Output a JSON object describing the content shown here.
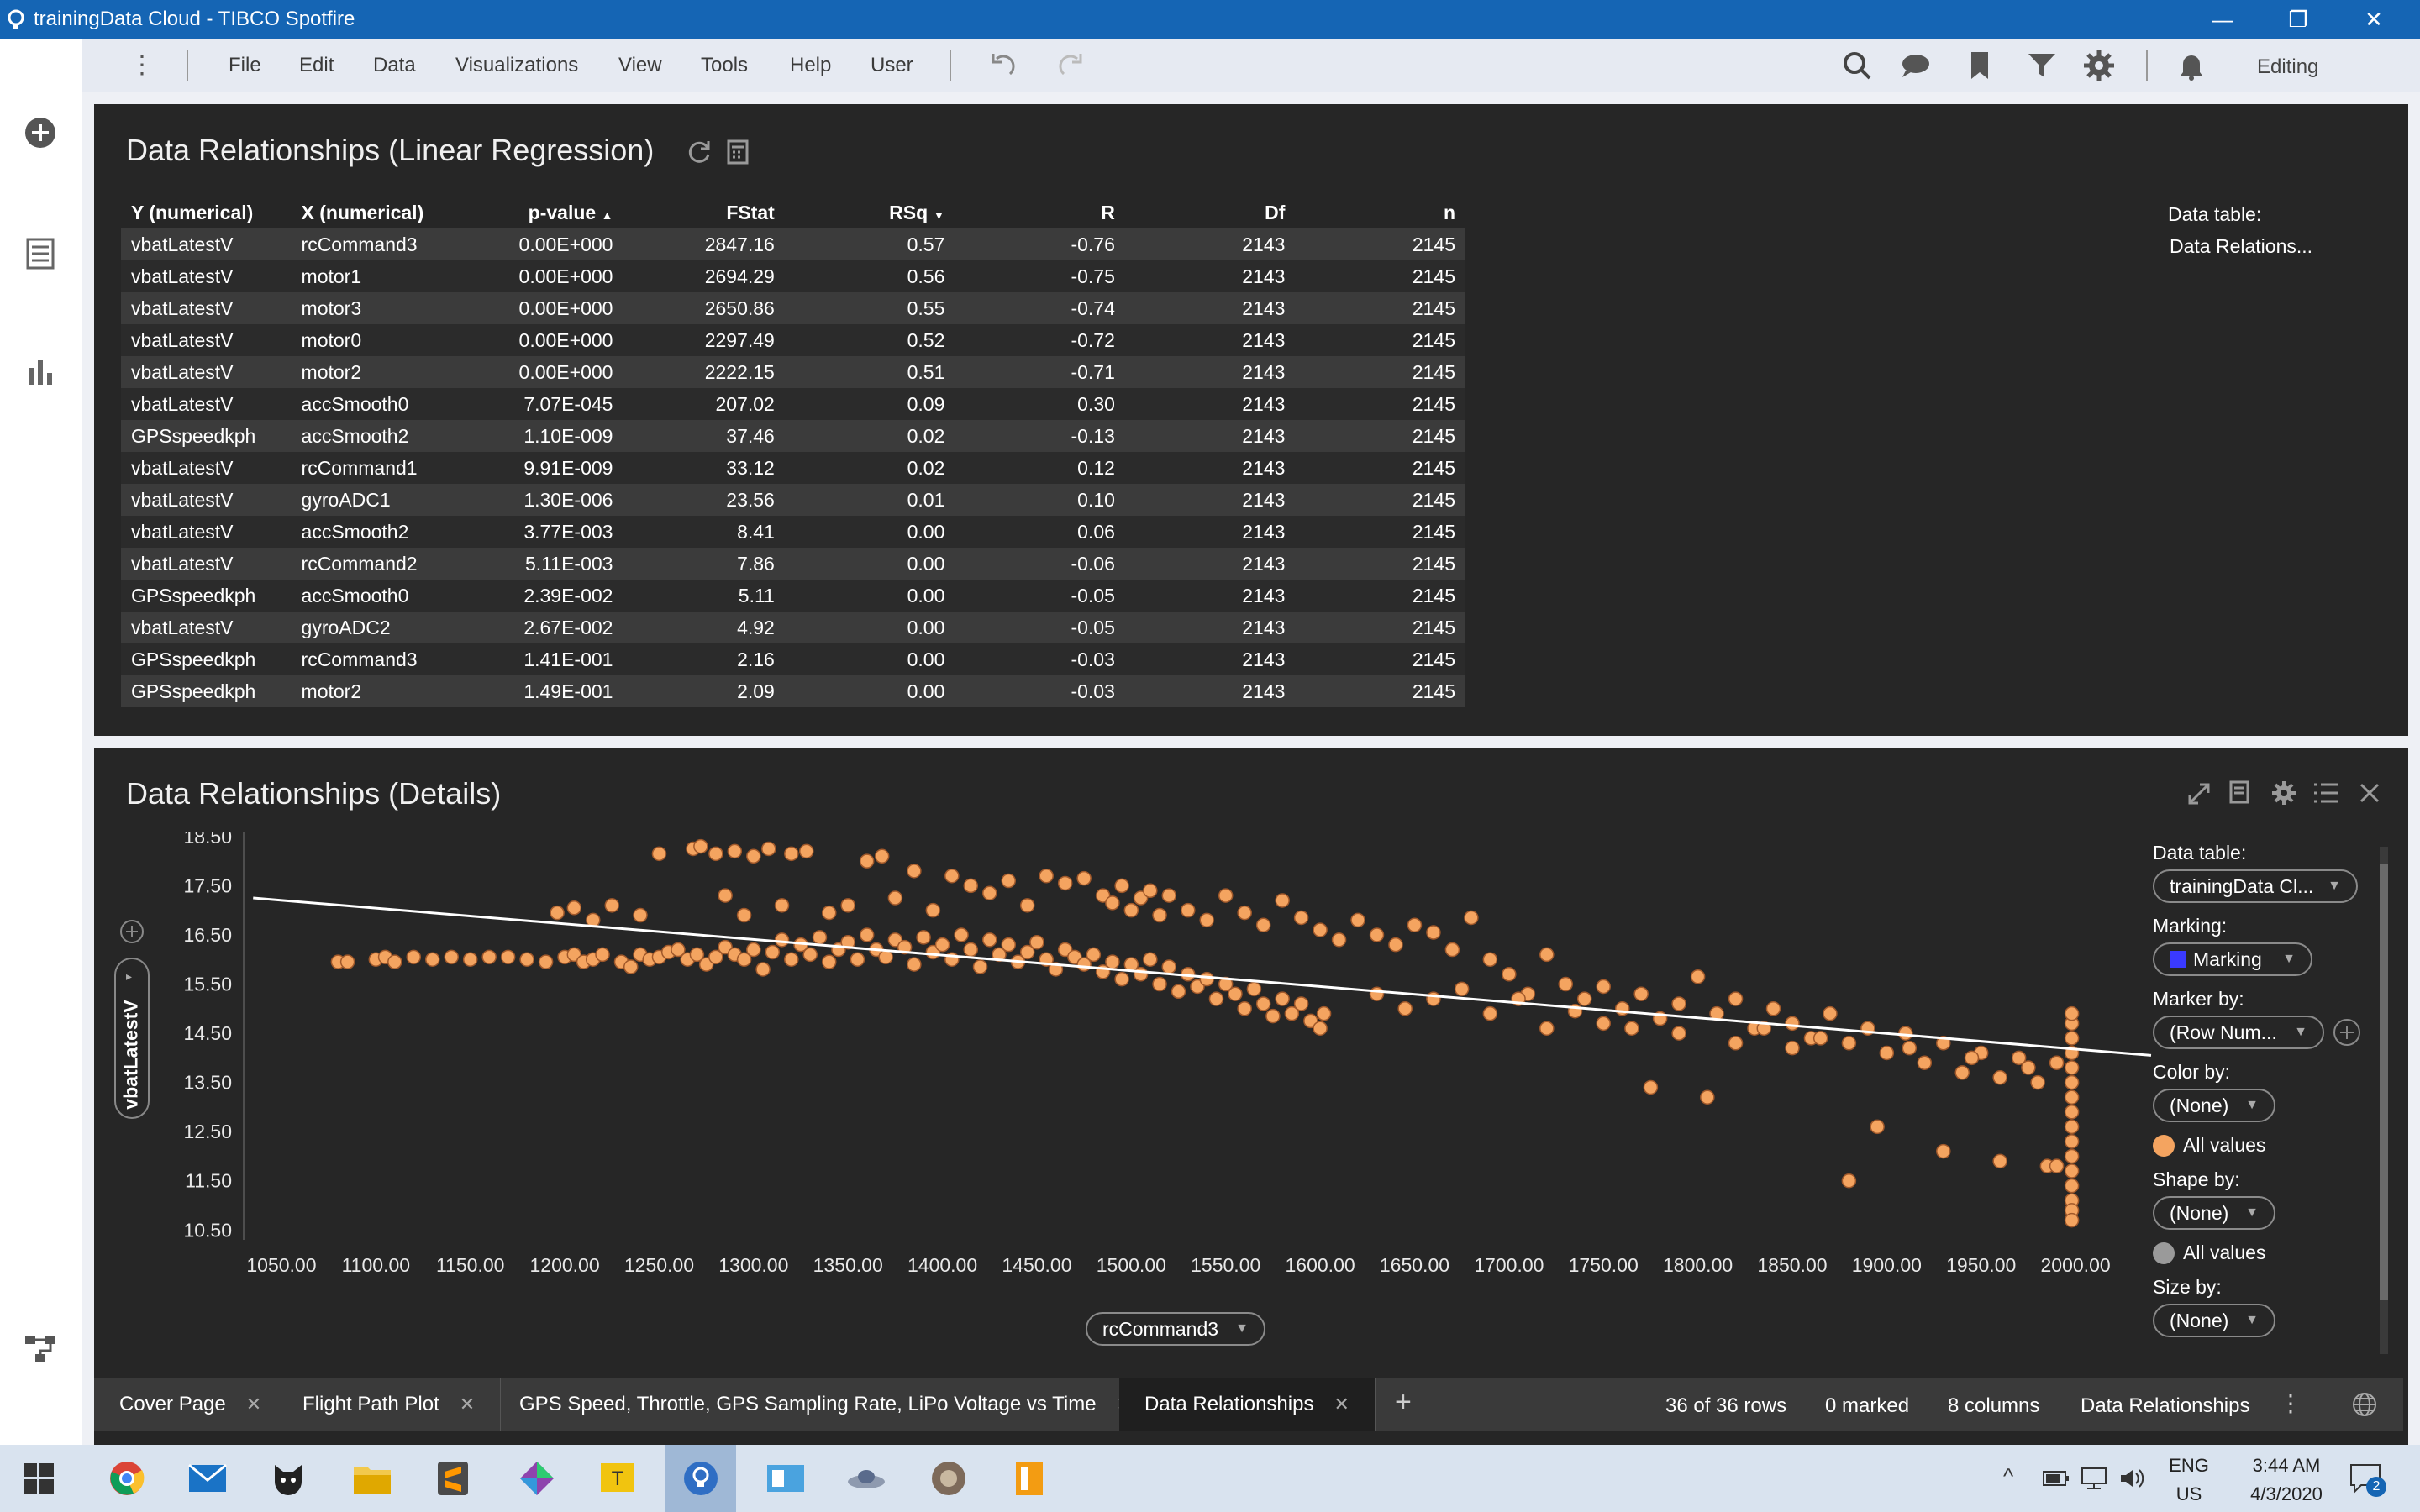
{
  "window": {
    "title": "trainingData Cloud - TIBCO Spotfire",
    "minimize": "—",
    "restore": "❐",
    "close": "✕"
  },
  "menu": {
    "items": [
      "File",
      "Edit",
      "Data",
      "Visualizations",
      "View",
      "Tools",
      "Help",
      "User"
    ],
    "mode": "Editing"
  },
  "regression_panel": {
    "title": "Data Relationships (Linear Regression)",
    "columns": [
      "Y (numerical)",
      "X (numerical)",
      "p-value",
      "FStat",
      "RSq",
      "R",
      "Df",
      "n"
    ],
    "rows": [
      [
        "vbatLatestV",
        "rcCommand3",
        "0.00E+000",
        "2847.16",
        "0.57",
        "-0.76",
        "2143",
        "2145"
      ],
      [
        "vbatLatestV",
        "motor1",
        "0.00E+000",
        "2694.29",
        "0.56",
        "-0.75",
        "2143",
        "2145"
      ],
      [
        "vbatLatestV",
        "motor3",
        "0.00E+000",
        "2650.86",
        "0.55",
        "-0.74",
        "2143",
        "2145"
      ],
      [
        "vbatLatestV",
        "motor0",
        "0.00E+000",
        "2297.49",
        "0.52",
        "-0.72",
        "2143",
        "2145"
      ],
      [
        "vbatLatestV",
        "motor2",
        "0.00E+000",
        "2222.15",
        "0.51",
        "-0.71",
        "2143",
        "2145"
      ],
      [
        "vbatLatestV",
        "accSmooth0",
        "7.07E-045",
        "207.02",
        "0.09",
        "0.30",
        "2143",
        "2145"
      ],
      [
        "GPSspeedkph",
        "accSmooth2",
        "1.10E-009",
        "37.46",
        "0.02",
        "-0.13",
        "2143",
        "2145"
      ],
      [
        "vbatLatestV",
        "rcCommand1",
        "9.91E-009",
        "33.12",
        "0.02",
        "0.12",
        "2143",
        "2145"
      ],
      [
        "vbatLatestV",
        "gyroADC1",
        "1.30E-006",
        "23.56",
        "0.01",
        "0.10",
        "2143",
        "2145"
      ],
      [
        "vbatLatestV",
        "accSmooth2",
        "3.77E-003",
        "8.41",
        "0.00",
        "0.06",
        "2143",
        "2145"
      ],
      [
        "vbatLatestV",
        "rcCommand2",
        "5.11E-003",
        "7.86",
        "0.00",
        "-0.06",
        "2143",
        "2145"
      ],
      [
        "GPSspeedkph",
        "accSmooth0",
        "2.39E-002",
        "5.11",
        "0.00",
        "-0.05",
        "2143",
        "2145"
      ],
      [
        "vbatLatestV",
        "gyroADC2",
        "2.67E-002",
        "4.92",
        "0.00",
        "-0.05",
        "2143",
        "2145"
      ],
      [
        "GPSspeedkph",
        "rcCommand3",
        "1.41E-001",
        "2.16",
        "0.00",
        "-0.03",
        "2143",
        "2145"
      ],
      [
        "GPSspeedkph",
        "motor2",
        "1.49E-001",
        "2.09",
        "0.00",
        "-0.03",
        "2143",
        "2145"
      ]
    ],
    "side": {
      "data_table_label": "Data table:",
      "data_table_value": "Data Relations..."
    }
  },
  "details_panel": {
    "title": "Data Relationships (Details)",
    "y_axis_selector": "vbatLatestV",
    "x_axis_selector": "rcCommand3",
    "legend": {
      "data_table_label": "Data table:",
      "data_table_value": "trainingData Cl...",
      "marking_label": "Marking:",
      "marking_value": "Marking",
      "marker_by_label": "Marker by:",
      "marker_by_value": "(Row Num...",
      "color_by_label": "Color by:",
      "color_by_value": "(None)",
      "color_all_values": "All values",
      "shape_by_label": "Shape by:",
      "shape_by_value": "(None)",
      "shape_all_values": "All values",
      "size_by_label": "Size by:",
      "size_by_value": "(None)"
    }
  },
  "chart_data": {
    "type": "scatter",
    "xlabel": "rcCommand3",
    "ylabel": "vbatLatestV",
    "xlim": [
      1030,
      2040
    ],
    "ylim": [
      10.3,
      18.6
    ],
    "x_ticks": [
      "1050.00",
      "1100.00",
      "1150.00",
      "1200.00",
      "1250.00",
      "1300.00",
      "1350.00",
      "1400.00",
      "1450.00",
      "1500.00",
      "1550.00",
      "1600.00",
      "1650.00",
      "1700.00",
      "1750.00",
      "1800.00",
      "1850.00",
      "1900.00",
      "1950.00",
      "2000.00"
    ],
    "y_ticks": [
      "18.50",
      "17.50",
      "16.50",
      "15.50",
      "14.50",
      "13.50",
      "12.50",
      "11.50",
      "10.50"
    ],
    "marker_color": "#f4a460",
    "trend_line": {
      "x": [
        1035,
        2040
      ],
      "y": [
        17.25,
        14.05
      ],
      "color": "#ffffff"
    },
    "points": [
      [
        1080,
        15.95
      ],
      [
        1085,
        15.95
      ],
      [
        1100,
        16.0
      ],
      [
        1105,
        16.05
      ],
      [
        1110,
        15.95
      ],
      [
        1120,
        16.05
      ],
      [
        1130,
        16.0
      ],
      [
        1140,
        16.05
      ],
      [
        1150,
        16.0
      ],
      [
        1160,
        16.05
      ],
      [
        1170,
        16.05
      ],
      [
        1180,
        16.0
      ],
      [
        1190,
        15.95
      ],
      [
        1200,
        16.05
      ],
      [
        1205,
        16.1
      ],
      [
        1210,
        15.95
      ],
      [
        1215,
        16.0
      ],
      [
        1220,
        16.1
      ],
      [
        1230,
        15.95
      ],
      [
        1235,
        15.85
      ],
      [
        1240,
        16.1
      ],
      [
        1245,
        16.0
      ],
      [
        1250,
        16.05
      ],
      [
        1255,
        16.15
      ],
      [
        1260,
        16.2
      ],
      [
        1265,
        16.0
      ],
      [
        1270,
        16.1
      ],
      [
        1275,
        15.9
      ],
      [
        1280,
        16.05
      ],
      [
        1285,
        16.25
      ],
      [
        1290,
        16.1
      ],
      [
        1295,
        16.0
      ],
      [
        1300,
        16.2
      ],
      [
        1305,
        15.8
      ],
      [
        1310,
        16.15
      ],
      [
        1315,
        16.4
      ],
      [
        1320,
        16.0
      ],
      [
        1325,
        16.3
      ],
      [
        1330,
        16.1
      ],
      [
        1335,
        16.45
      ],
      [
        1340,
        15.95
      ],
      [
        1345,
        16.2
      ],
      [
        1350,
        16.35
      ],
      [
        1355,
        16.0
      ],
      [
        1360,
        16.5
      ],
      [
        1365,
        16.2
      ],
      [
        1370,
        16.05
      ],
      [
        1375,
        16.4
      ],
      [
        1380,
        16.25
      ],
      [
        1385,
        15.9
      ],
      [
        1390,
        16.45
      ],
      [
        1395,
        16.15
      ],
      [
        1400,
        16.3
      ],
      [
        1405,
        16.0
      ],
      [
        1410,
        16.5
      ],
      [
        1415,
        16.2
      ],
      [
        1420,
        15.85
      ],
      [
        1425,
        16.4
      ],
      [
        1430,
        16.1
      ],
      [
        1435,
        16.3
      ],
      [
        1440,
        15.95
      ],
      [
        1445,
        16.15
      ],
      [
        1450,
        16.35
      ],
      [
        1455,
        16.0
      ],
      [
        1460,
        15.8
      ],
      [
        1465,
        16.2
      ],
      [
        1470,
        16.05
      ],
      [
        1475,
        15.9
      ],
      [
        1480,
        16.1
      ],
      [
        1485,
        15.75
      ],
      [
        1490,
        15.95
      ],
      [
        1495,
        15.6
      ],
      [
        1500,
        15.9
      ],
      [
        1505,
        15.7
      ],
      [
        1510,
        16.0
      ],
      [
        1515,
        15.5
      ],
      [
        1520,
        15.85
      ],
      [
        1525,
        15.35
      ],
      [
        1530,
        15.7
      ],
      [
        1535,
        15.45
      ],
      [
        1540,
        15.6
      ],
      [
        1545,
        15.2
      ],
      [
        1550,
        15.5
      ],
      [
        1555,
        15.3
      ],
      [
        1560,
        15.0
      ],
      [
        1565,
        15.4
      ],
      [
        1570,
        15.1
      ],
      [
        1575,
        14.85
      ],
      [
        1580,
        15.2
      ],
      [
        1585,
        14.9
      ],
      [
        1590,
        15.1
      ],
      [
        1595,
        14.75
      ],
      [
        1600,
        14.6
      ],
      [
        1602,
        14.9
      ],
      [
        1196,
        16.95
      ],
      [
        1205,
        17.05
      ],
      [
        1215,
        16.8
      ],
      [
        1225,
        17.1
      ],
      [
        1240,
        16.9
      ],
      [
        1250,
        18.15
      ],
      [
        1268,
        18.25
      ],
      [
        1272,
        18.3
      ],
      [
        1280,
        18.15
      ],
      [
        1285,
        17.3
      ],
      [
        1290,
        18.2
      ],
      [
        1295,
        16.9
      ],
      [
        1300,
        18.1
      ],
      [
        1308,
        18.25
      ],
      [
        1315,
        17.1
      ],
      [
        1320,
        18.15
      ],
      [
        1328,
        18.2
      ],
      [
        1340,
        16.95
      ],
      [
        1350,
        17.1
      ],
      [
        1360,
        18.0
      ],
      [
        1368,
        18.1
      ],
      [
        1375,
        17.25
      ],
      [
        1385,
        17.8
      ],
      [
        1395,
        17.0
      ],
      [
        1405,
        17.7
      ],
      [
        1415,
        17.5
      ],
      [
        1425,
        17.35
      ],
      [
        1435,
        17.6
      ],
      [
        1445,
        17.1
      ],
      [
        1455,
        17.7
      ],
      [
        1465,
        17.55
      ],
      [
        1475,
        17.65
      ],
      [
        1485,
        17.3
      ],
      [
        1490,
        17.15
      ],
      [
        1495,
        17.5
      ],
      [
        1500,
        17.0
      ],
      [
        1505,
        17.25
      ],
      [
        1510,
        17.4
      ],
      [
        1515,
        16.9
      ],
      [
        1520,
        17.3
      ],
      [
        1530,
        17.0
      ],
      [
        1540,
        16.8
      ],
      [
        1550,
        17.3
      ],
      [
        1560,
        16.95
      ],
      [
        1570,
        16.7
      ],
      [
        1580,
        17.2
      ],
      [
        1590,
        16.85
      ],
      [
        1600,
        16.6
      ],
      [
        1610,
        16.4
      ],
      [
        1620,
        16.8
      ],
      [
        1630,
        16.5
      ],
      [
        1640,
        16.3
      ],
      [
        1650,
        16.7
      ],
      [
        1660,
        16.55
      ],
      [
        1670,
        16.2
      ],
      [
        1680,
        16.85
      ],
      [
        1690,
        16.0
      ],
      [
        1700,
        15.7
      ],
      [
        1710,
        15.3
      ],
      [
        1720,
        16.1
      ],
      [
        1730,
        15.5
      ],
      [
        1740,
        15.2
      ],
      [
        1750,
        15.45
      ],
      [
        1760,
        15.0
      ],
      [
        1770,
        15.3
      ],
      [
        1780,
        14.8
      ],
      [
        1790,
        15.1
      ],
      [
        1800,
        15.65
      ],
      [
        1810,
        14.9
      ],
      [
        1820,
        15.2
      ],
      [
        1830,
        14.6
      ],
      [
        1840,
        15.0
      ],
      [
        1850,
        14.7
      ],
      [
        1860,
        14.4
      ],
      [
        1870,
        14.9
      ],
      [
        1880,
        14.3
      ],
      [
        1890,
        14.6
      ],
      [
        1900,
        14.1
      ],
      [
        1910,
        14.5
      ],
      [
        1920,
        13.9
      ],
      [
        1930,
        14.3
      ],
      [
        1940,
        13.7
      ],
      [
        1950,
        14.1
      ],
      [
        1960,
        13.6
      ],
      [
        1970,
        14.0
      ],
      [
        1980,
        13.5
      ],
      [
        1990,
        13.9
      ],
      [
        1630,
        15.3
      ],
      [
        1645,
        15.0
      ],
      [
        1660,
        15.2
      ],
      [
        1675,
        15.4
      ],
      [
        1690,
        14.9
      ],
      [
        1705,
        15.2
      ],
      [
        1720,
        14.6
      ],
      [
        1735,
        14.95
      ],
      [
        1750,
        14.7
      ],
      [
        1765,
        14.6
      ],
      [
        1775,
        13.4
      ],
      [
        1790,
        14.5
      ],
      [
        1805,
        13.2
      ],
      [
        1820,
        14.3
      ],
      [
        1835,
        14.6
      ],
      [
        1850,
        14.2
      ],
      [
        1865,
        14.4
      ],
      [
        1880,
        11.5
      ],
      [
        1895,
        12.6
      ],
      [
        1912,
        14.2
      ],
      [
        1930,
        12.1
      ],
      [
        1945,
        14.0
      ],
      [
        1960,
        11.9
      ],
      [
        1975,
        13.8
      ],
      [
        1985,
        11.8
      ],
      [
        1990,
        11.8
      ],
      [
        1998,
        14.7
      ],
      [
        1998,
        14.4
      ],
      [
        1998,
        14.1
      ],
      [
        1998,
        13.8
      ],
      [
        1998,
        13.5
      ],
      [
        1998,
        12.9
      ],
      [
        1998,
        12.6
      ],
      [
        1998,
        12.3
      ],
      [
        1998,
        12.0
      ],
      [
        1998,
        11.7
      ],
      [
        1998,
        11.4
      ],
      [
        1998,
        11.1
      ],
      [
        1998,
        10.9
      ],
      [
        1998,
        10.7
      ],
      [
        1998,
        14.9
      ],
      [
        1998,
        13.2
      ]
    ]
  },
  "tabs": [
    "Cover Page",
    "Flight Path Plot",
    "GPS Speed, Throttle, GPS Sampling Rate, LiPo Voltage vs Time",
    "Data Relationships"
  ],
  "status": {
    "rows": "36 of 36 rows",
    "marked": "0 marked",
    "columns": "8 columns",
    "table": "Data Relationships"
  },
  "taskbar": {
    "lang": "ENG",
    "region": "US",
    "time": "3:44 AM",
    "date": "4/3/2020",
    "notifications": "2"
  }
}
